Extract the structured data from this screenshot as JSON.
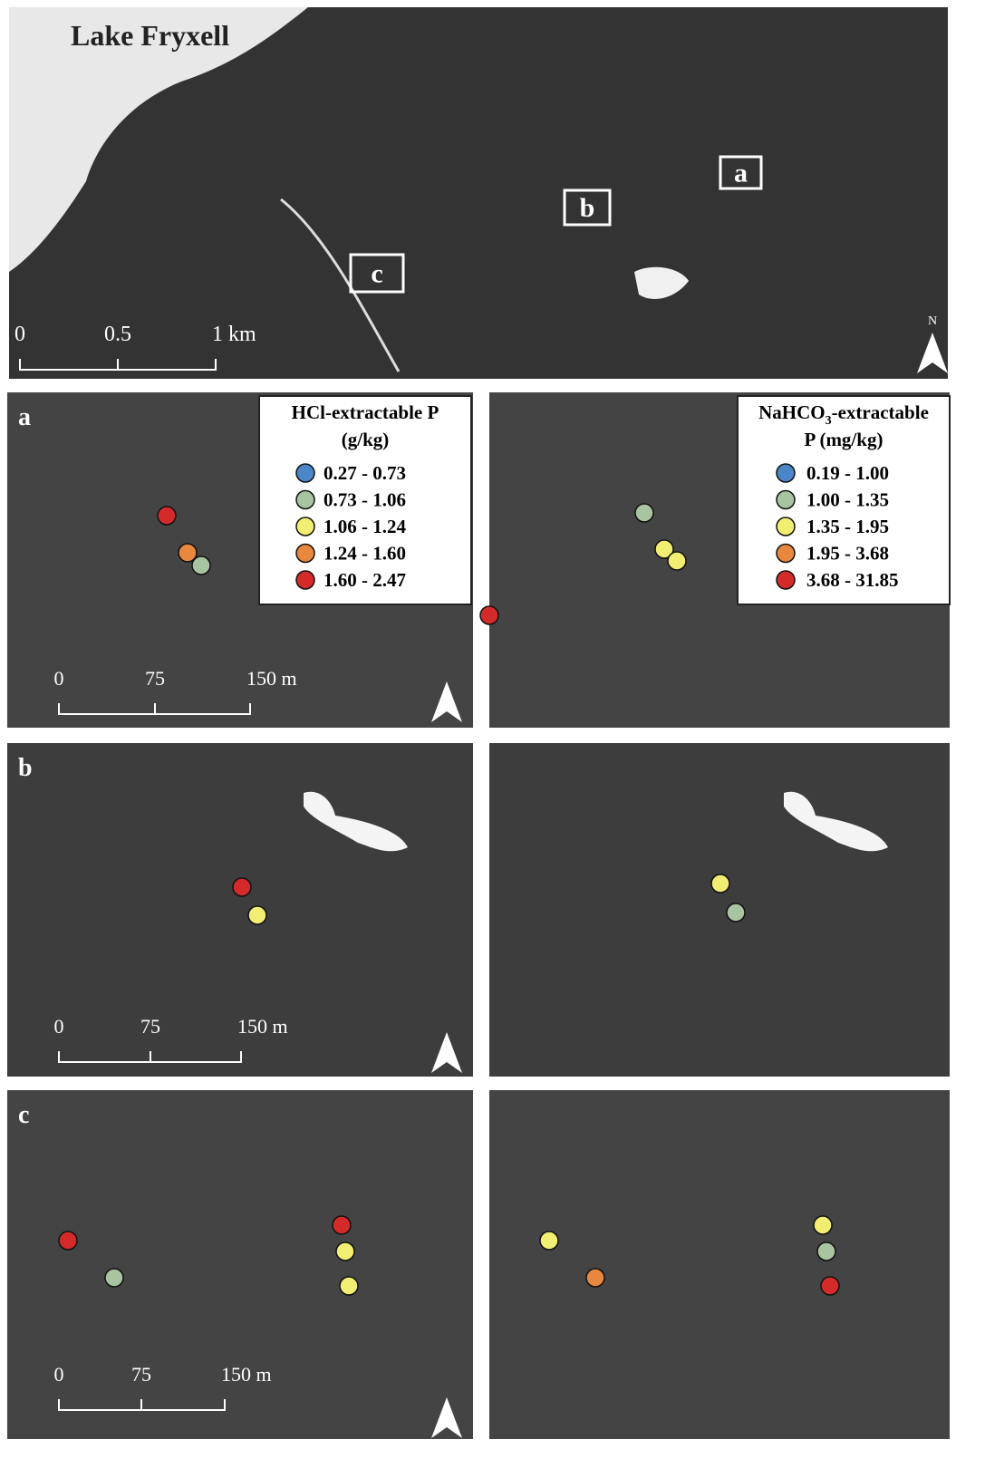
{
  "overview": {
    "title": "Lake Fryxell",
    "site_labels": [
      "a",
      "b",
      "c"
    ],
    "scale": [
      "0",
      "0.5",
      "1 km"
    ],
    "north": "N"
  },
  "panels": [
    {
      "label": "a",
      "scale": [
        "0",
        "75",
        "150 m"
      ]
    },
    {
      "label": "b",
      "scale": [
        "0",
        "75",
        "150 m"
      ]
    },
    {
      "label": "c",
      "scale": [
        "0",
        "75",
        "150 m"
      ]
    }
  ],
  "legends": [
    {
      "title": [
        "HCl-extractable P",
        "(g/kg)"
      ],
      "items": [
        {
          "label": "0.27 - 0.73",
          "color": "#4a86c8"
        },
        {
          "label": "0.73 - 1.06",
          "color": "#a9c4a0"
        },
        {
          "label": "1.06 - 1.24",
          "color": "#f2ee72"
        },
        {
          "label": "1.24 - 1.60",
          "color": "#e8873e"
        },
        {
          "label": "1.60 - 2.47",
          "color": "#d42a2a"
        }
      ]
    },
    {
      "title": [
        "NaHCO",
        "3",
        "-extractable",
        "P (mg/kg)"
      ],
      "items": [
        {
          "label": "0.19 - 1.00",
          "color": "#4a86c8"
        },
        {
          "label": "1.00 - 1.35",
          "color": "#a9c4a0"
        },
        {
          "label": "1.35 - 1.95",
          "color": "#f2ee72"
        },
        {
          "label": "1.95 - 3.68",
          "color": "#e8873e"
        },
        {
          "label": "3.68 - 31.85",
          "color": "#d42a2a"
        }
      ]
    }
  ]
}
